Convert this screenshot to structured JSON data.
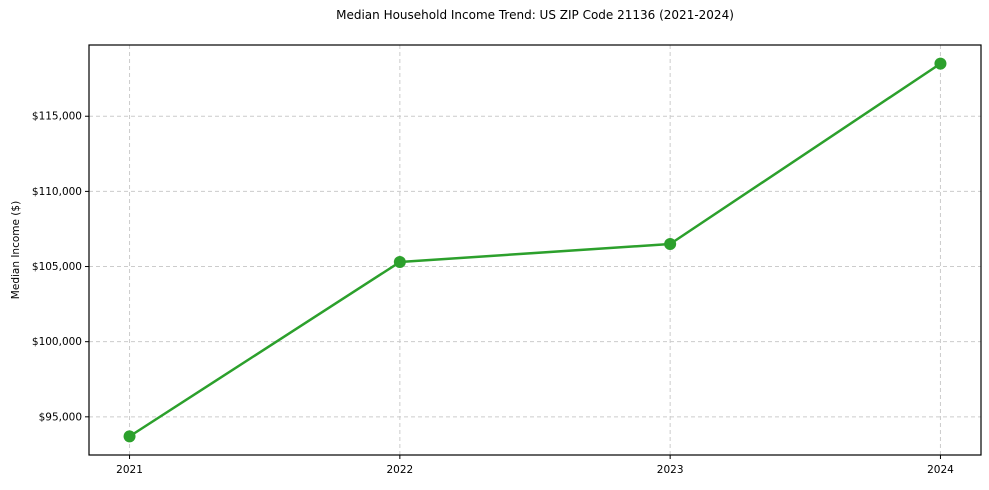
{
  "chart_data": {
    "type": "line",
    "title": "Median Household Income Trend: US ZIP Code 21136 (2021-2024)",
    "xlabel": "",
    "ylabel": "Median Income ($)",
    "x": [
      2021,
      2022,
      2023,
      2024
    ],
    "x_labels": [
      "2021",
      "2022",
      "2023",
      "2024"
    ],
    "series": [
      {
        "name": "Median Household Income",
        "values": [
          93700,
          105300,
          106500,
          118500
        ]
      }
    ],
    "y_ticks": [
      95000,
      100000,
      105000,
      110000,
      115000
    ],
    "y_tick_labels": [
      "$95,000",
      "$100,000",
      "$105,000",
      "$110,000",
      "$115,000"
    ],
    "xlim": [
      2020.85,
      2024.15
    ],
    "ylim": [
      92460,
      119740
    ],
    "grid": "dashed-both-axes",
    "legend": "none",
    "line_color": "#2ca02c",
    "marker": "circle",
    "grid_color": "#cccccc",
    "frame_color": "#000000",
    "background_color": "#ffffff"
  }
}
